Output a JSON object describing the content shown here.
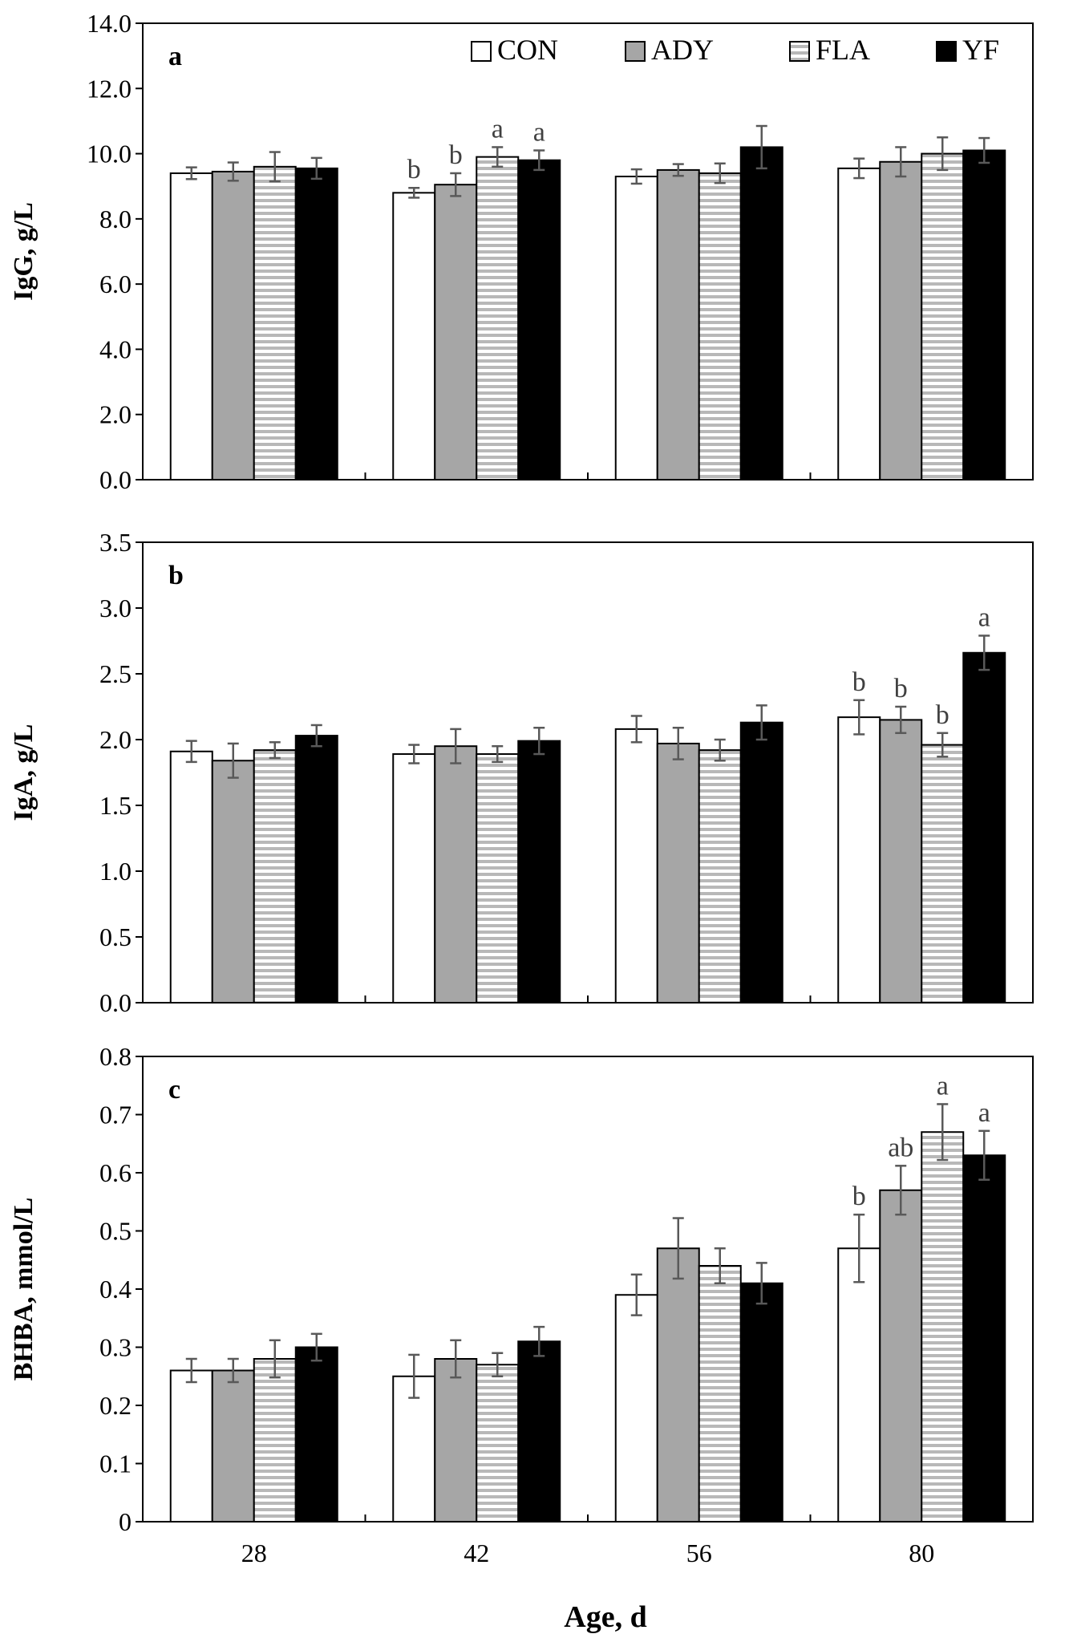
{
  "figure": {
    "xlabel": "Age, d",
    "legend": [
      "CON",
      "ADY",
      "FLA",
      "YF"
    ],
    "colors": {
      "CON": "#ffffff",
      "ADY": "#a6a6a6",
      "FLA_stripe": "#b8b8b8",
      "YF": "#000000",
      "axis": "#000000",
      "errorbar": "#595959",
      "sig_letter": "#404040"
    }
  },
  "chart_data": [
    {
      "type": "bar",
      "panel": "a",
      "ylabel": "IgG, g/L",
      "ylim": [
        0,
        14
      ],
      "yticks": [
        "0.0",
        "2.0",
        "4.0",
        "6.0",
        "8.0",
        "10.0",
        "12.0",
        "14.0"
      ],
      "categories": [
        "28",
        "42",
        "56",
        "80"
      ],
      "legend_position": "top",
      "series": [
        {
          "name": "CON",
          "values": [
            9.4,
            8.8,
            9.3,
            9.55
          ],
          "errors": [
            0.18,
            0.15,
            0.22,
            0.3
          ],
          "labels": [
            "",
            "b",
            "",
            ""
          ]
        },
        {
          "name": "ADY",
          "values": [
            9.45,
            9.05,
            9.5,
            9.75
          ],
          "errors": [
            0.28,
            0.35,
            0.18,
            0.45
          ],
          "labels": [
            "",
            "b",
            "",
            ""
          ]
        },
        {
          "name": "FLA",
          "values": [
            9.6,
            9.9,
            9.4,
            10.0
          ],
          "errors": [
            0.45,
            0.3,
            0.3,
            0.5
          ],
          "labels": [
            "",
            "a",
            "",
            ""
          ]
        },
        {
          "name": "YF",
          "values": [
            9.55,
            9.8,
            10.2,
            10.1
          ],
          "errors": [
            0.32,
            0.3,
            0.65,
            0.38
          ],
          "labels": [
            "",
            "a",
            "",
            ""
          ]
        }
      ]
    },
    {
      "type": "bar",
      "panel": "b",
      "ylabel": "IgA, g/L",
      "ylim": [
        0,
        3.5
      ],
      "yticks": [
        "0.0",
        "0.5",
        "1.0",
        "1.5",
        "2.0",
        "2.5",
        "3.0",
        "3.5"
      ],
      "categories": [
        "28",
        "42",
        "56",
        "80"
      ],
      "series": [
        {
          "name": "CON",
          "values": [
            1.91,
            1.89,
            2.08,
            2.17
          ],
          "errors": [
            0.08,
            0.07,
            0.1,
            0.13
          ],
          "labels": [
            "",
            "",
            "",
            "b"
          ]
        },
        {
          "name": "ADY",
          "values": [
            1.84,
            1.95,
            1.97,
            2.15
          ],
          "errors": [
            0.13,
            0.13,
            0.12,
            0.1
          ],
          "labels": [
            "",
            "",
            "",
            "b"
          ]
        },
        {
          "name": "FLA",
          "values": [
            1.92,
            1.89,
            1.92,
            1.96
          ],
          "errors": [
            0.06,
            0.06,
            0.08,
            0.09
          ],
          "labels": [
            "",
            "",
            "",
            "b"
          ]
        },
        {
          "name": "YF",
          "values": [
            2.03,
            1.99,
            2.13,
            2.66
          ],
          "errors": [
            0.08,
            0.1,
            0.13,
            0.13
          ],
          "labels": [
            "",
            "",
            "",
            "a"
          ]
        }
      ]
    },
    {
      "type": "bar",
      "panel": "c",
      "ylabel": "BHBA, mmol/L",
      "ylim": [
        0,
        0.8
      ],
      "yticks": [
        "0",
        "0.1",
        "0.2",
        "0.3",
        "0.4",
        "0.5",
        "0.6",
        "0.7",
        "0.8"
      ],
      "categories": [
        "28",
        "42",
        "56",
        "80"
      ],
      "series": [
        {
          "name": "CON",
          "values": [
            0.26,
            0.25,
            0.39,
            0.47
          ],
          "errors": [
            0.02,
            0.037,
            0.035,
            0.058
          ],
          "labels": [
            "",
            "",
            "",
            "b"
          ]
        },
        {
          "name": "ADY",
          "values": [
            0.26,
            0.28,
            0.47,
            0.57
          ],
          "errors": [
            0.02,
            0.032,
            0.052,
            0.042
          ],
          "labels": [
            "",
            "",
            "",
            "ab"
          ]
        },
        {
          "name": "FLA",
          "values": [
            0.28,
            0.27,
            0.44,
            0.67
          ],
          "errors": [
            0.032,
            0.02,
            0.03,
            0.048
          ],
          "labels": [
            "",
            "",
            "",
            "a"
          ]
        },
        {
          "name": "YF",
          "values": [
            0.3,
            0.31,
            0.41,
            0.63
          ],
          "errors": [
            0.023,
            0.025,
            0.035,
            0.042
          ],
          "labels": [
            "",
            "",
            "",
            "a"
          ]
        }
      ]
    }
  ]
}
